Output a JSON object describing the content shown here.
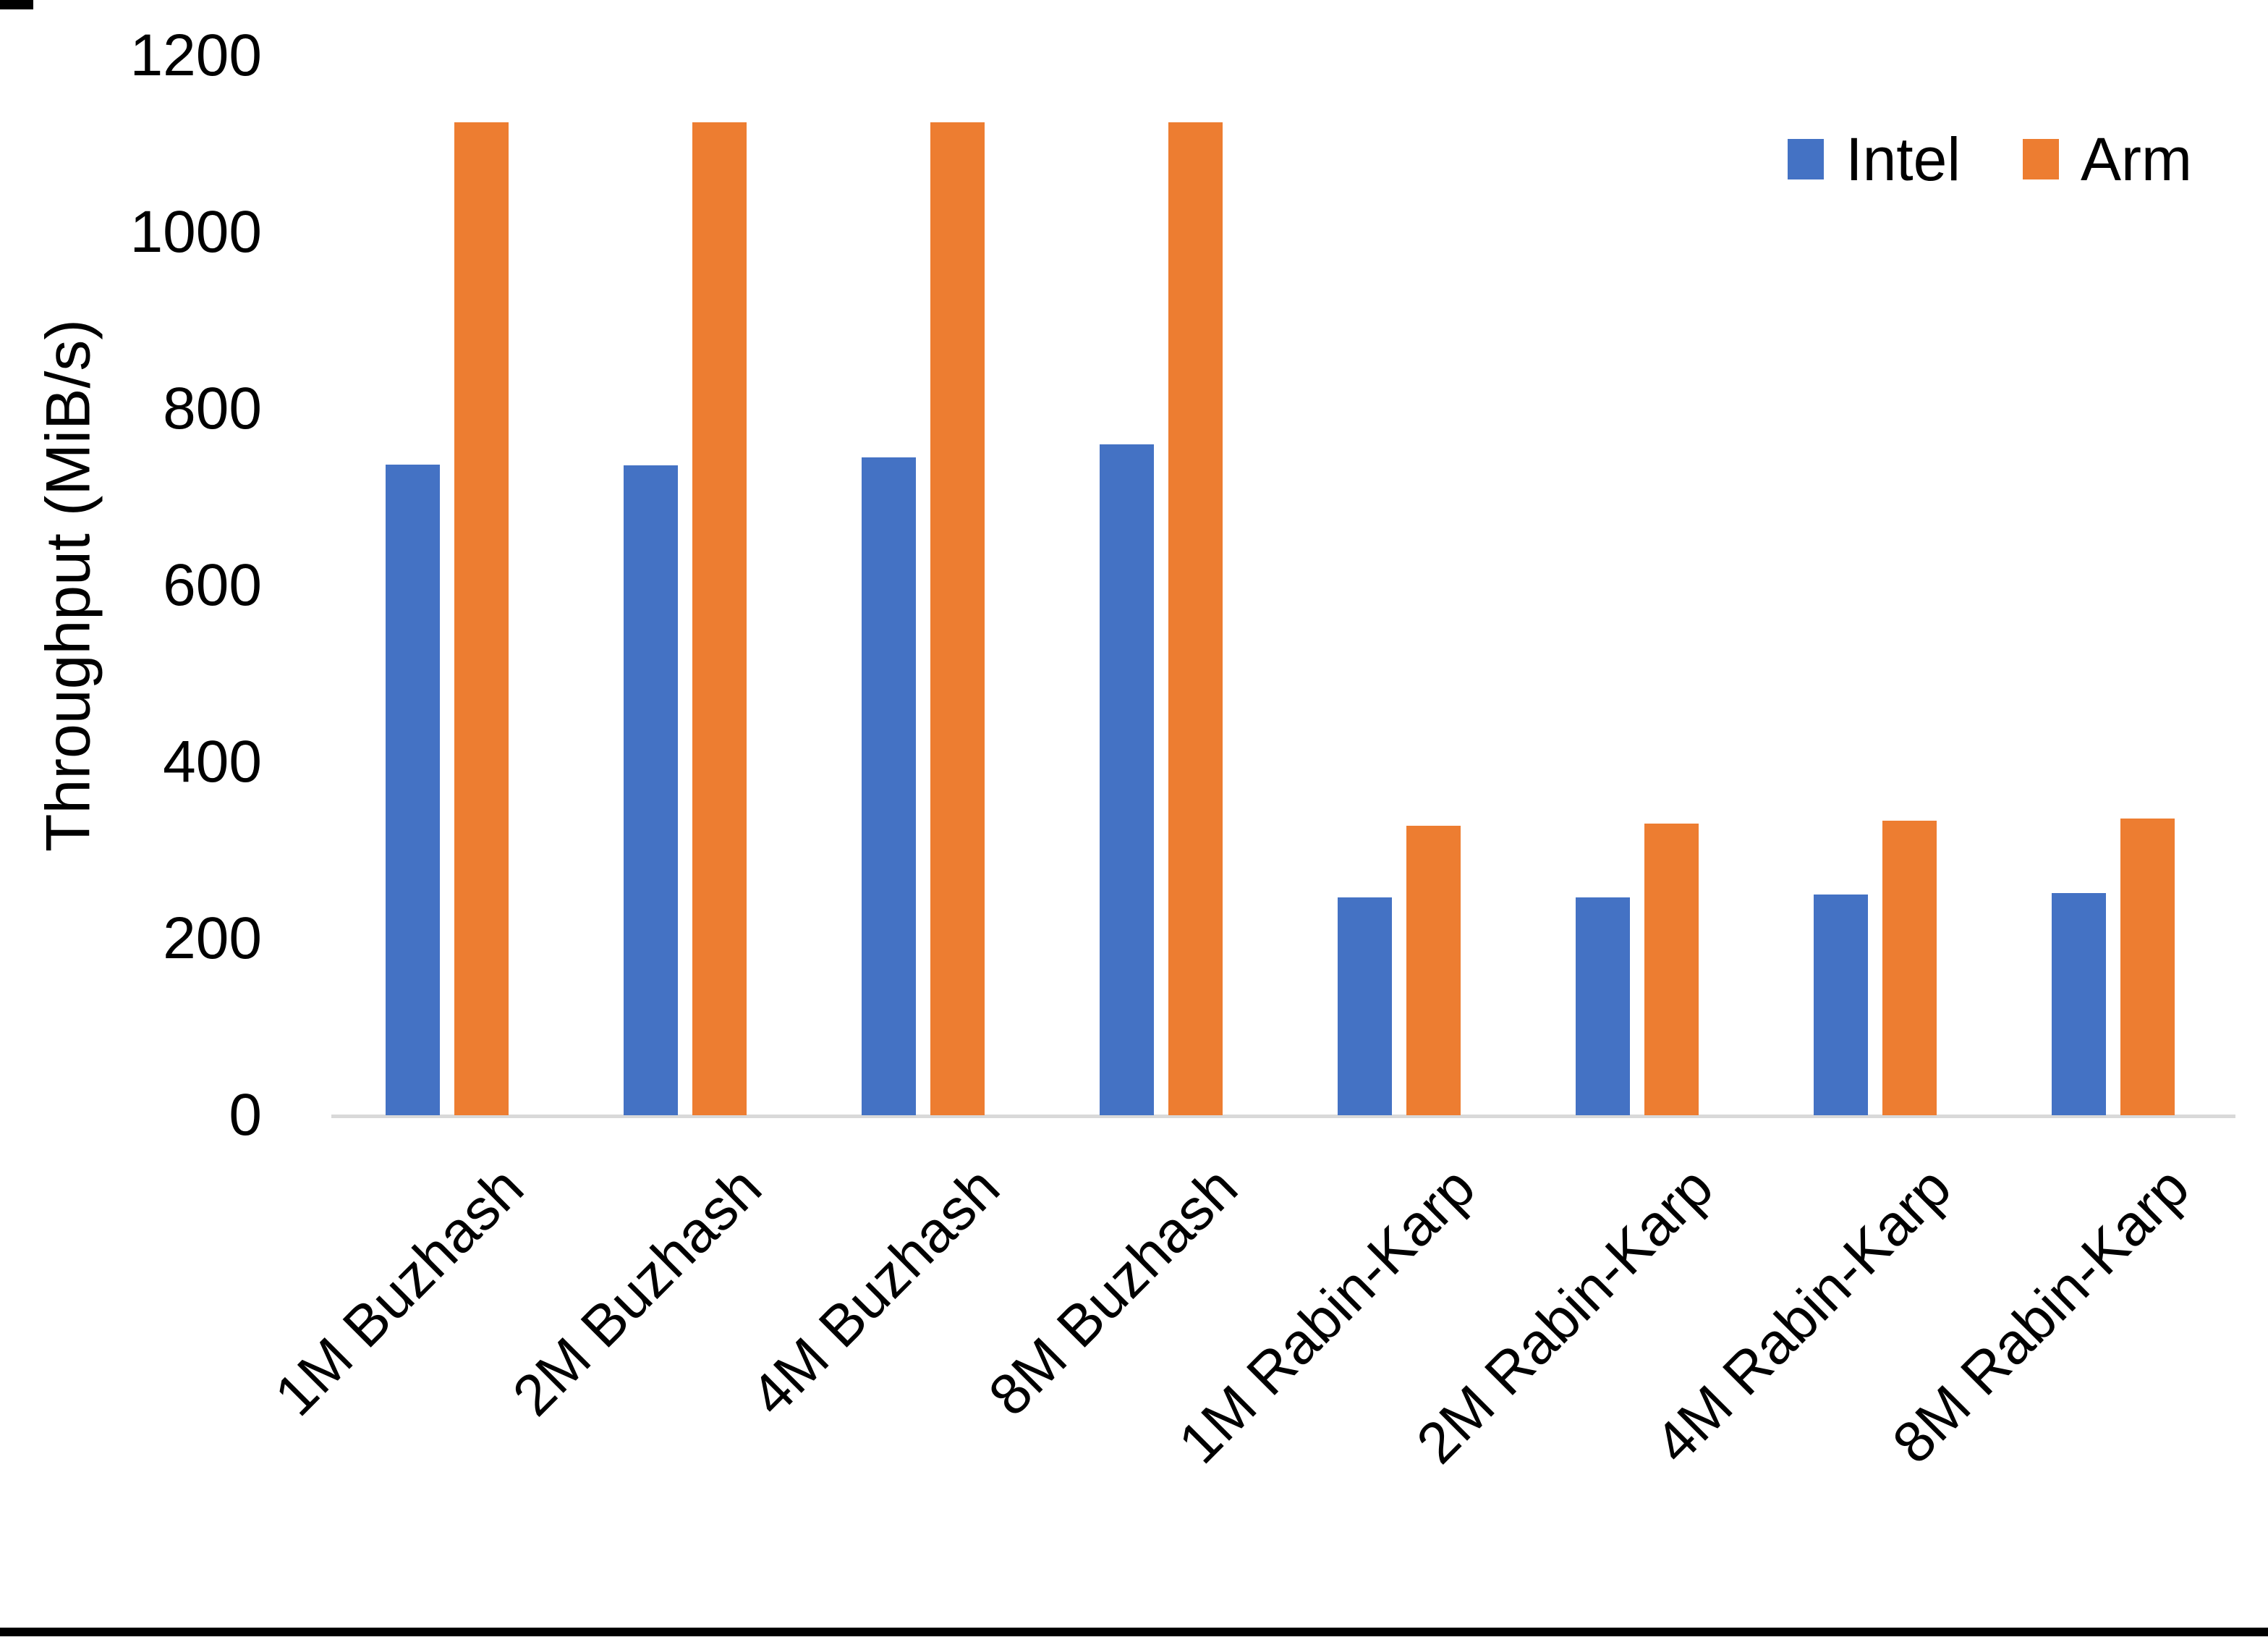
{
  "page": {
    "background": "#ffffff",
    "border_color": "#000000"
  },
  "chart_data": {
    "type": "bar",
    "title": "",
    "xlabel": "",
    "ylabel": "Throughput (MiB/s)",
    "ylim": [
      0,
      1200
    ],
    "ytick_interval": 200,
    "yticks": [
      1200,
      1000,
      800,
      600,
      400,
      200,
      0
    ],
    "grid": false,
    "legend_position": "top-right",
    "axis_line_color": "#D9D9D9",
    "categories": [
      "1M Buzhash",
      "2M Buzhash",
      "4M Buzhash",
      "8M Buzhash",
      "1M Rabin-Karp",
      "2M Rabin-Karp",
      "4M Rabin-Karp",
      "8M Rabin-Karp"
    ],
    "series": [
      {
        "name": "Intel",
        "color": "#4472C4",
        "values": [
          737,
          736,
          745,
          760,
          247,
          247,
          250,
          252
        ]
      },
      {
        "name": "Arm",
        "color": "#ED7D31",
        "values": [
          1125,
          1125,
          1125,
          1125,
          328,
          330,
          334,
          336
        ]
      }
    ]
  }
}
